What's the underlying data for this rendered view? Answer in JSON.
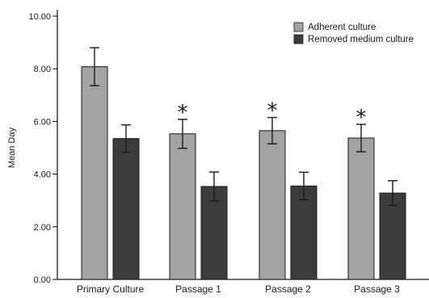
{
  "chart_data": {
    "type": "bar",
    "ylabel": "Mean Day",
    "ylim": [
      0,
      10
    ],
    "yticks": [
      "0.00",
      "2.00",
      "4.00",
      "6.00",
      "8.00",
      "10.00"
    ],
    "categories": [
      "Primary Culture",
      "Passage 1",
      "Passage 2",
      "Passage 3"
    ],
    "series": [
      {
        "name": "Adherent culture",
        "color": "#a3a3a3",
        "values": [
          8.08,
          5.53,
          5.65,
          5.37
        ],
        "errors": [
          0.72,
          0.55,
          0.5,
          0.52
        ]
      },
      {
        "name": "Removed medium culture",
        "color": "#3c3c3c",
        "values": [
          5.35,
          3.53,
          3.55,
          3.28
        ],
        "errors": [
          0.52,
          0.55,
          0.52,
          0.47
        ]
      }
    ],
    "annotations": [
      {
        "category": "Passage 1",
        "text": "*"
      },
      {
        "category": "Passage 2",
        "text": "*"
      },
      {
        "category": "Passage 3",
        "text": "*"
      }
    ],
    "legend": "top-right",
    "grid": false
  }
}
